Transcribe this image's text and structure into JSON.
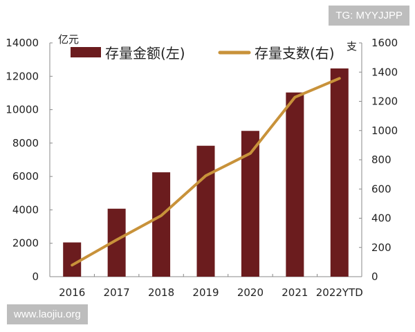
{
  "chart_data": {
    "type": "bar+line",
    "categories": [
      "2016",
      "2017",
      "2018",
      "2019",
      "2020",
      "2021",
      "2022YTD"
    ],
    "series": [
      {
        "name": "存量金额(左)",
        "type": "bar",
        "axis": "left",
        "color": "#6b1c1e",
        "values": [
          2050,
          4070,
          6250,
          7840,
          8730,
          11030,
          12470
        ]
      },
      {
        "name": "存量支数(右)",
        "type": "line",
        "axis": "right",
        "color": "#c8923a",
        "values": [
          79,
          252,
          418,
          691,
          844,
          1228,
          1357
        ]
      }
    ],
    "left_axis": {
      "label": "亿元",
      "ylim": [
        0,
        14000
      ],
      "ticks": [
        "0",
        "2000",
        "4000",
        "6000",
        "8000",
        "10000",
        "12000",
        "14000"
      ]
    },
    "right_axis": {
      "label": "支",
      "ylim": [
        0,
        1600
      ],
      "ticks": [
        "0",
        "200",
        "400",
        "600",
        "800",
        "1000",
        "1200",
        "1400",
        "1600"
      ]
    },
    "grid": false,
    "legend": "top"
  },
  "watermarks": {
    "top": "TG: MYYJJPP",
    "bottom": "www.laojiu.org"
  }
}
